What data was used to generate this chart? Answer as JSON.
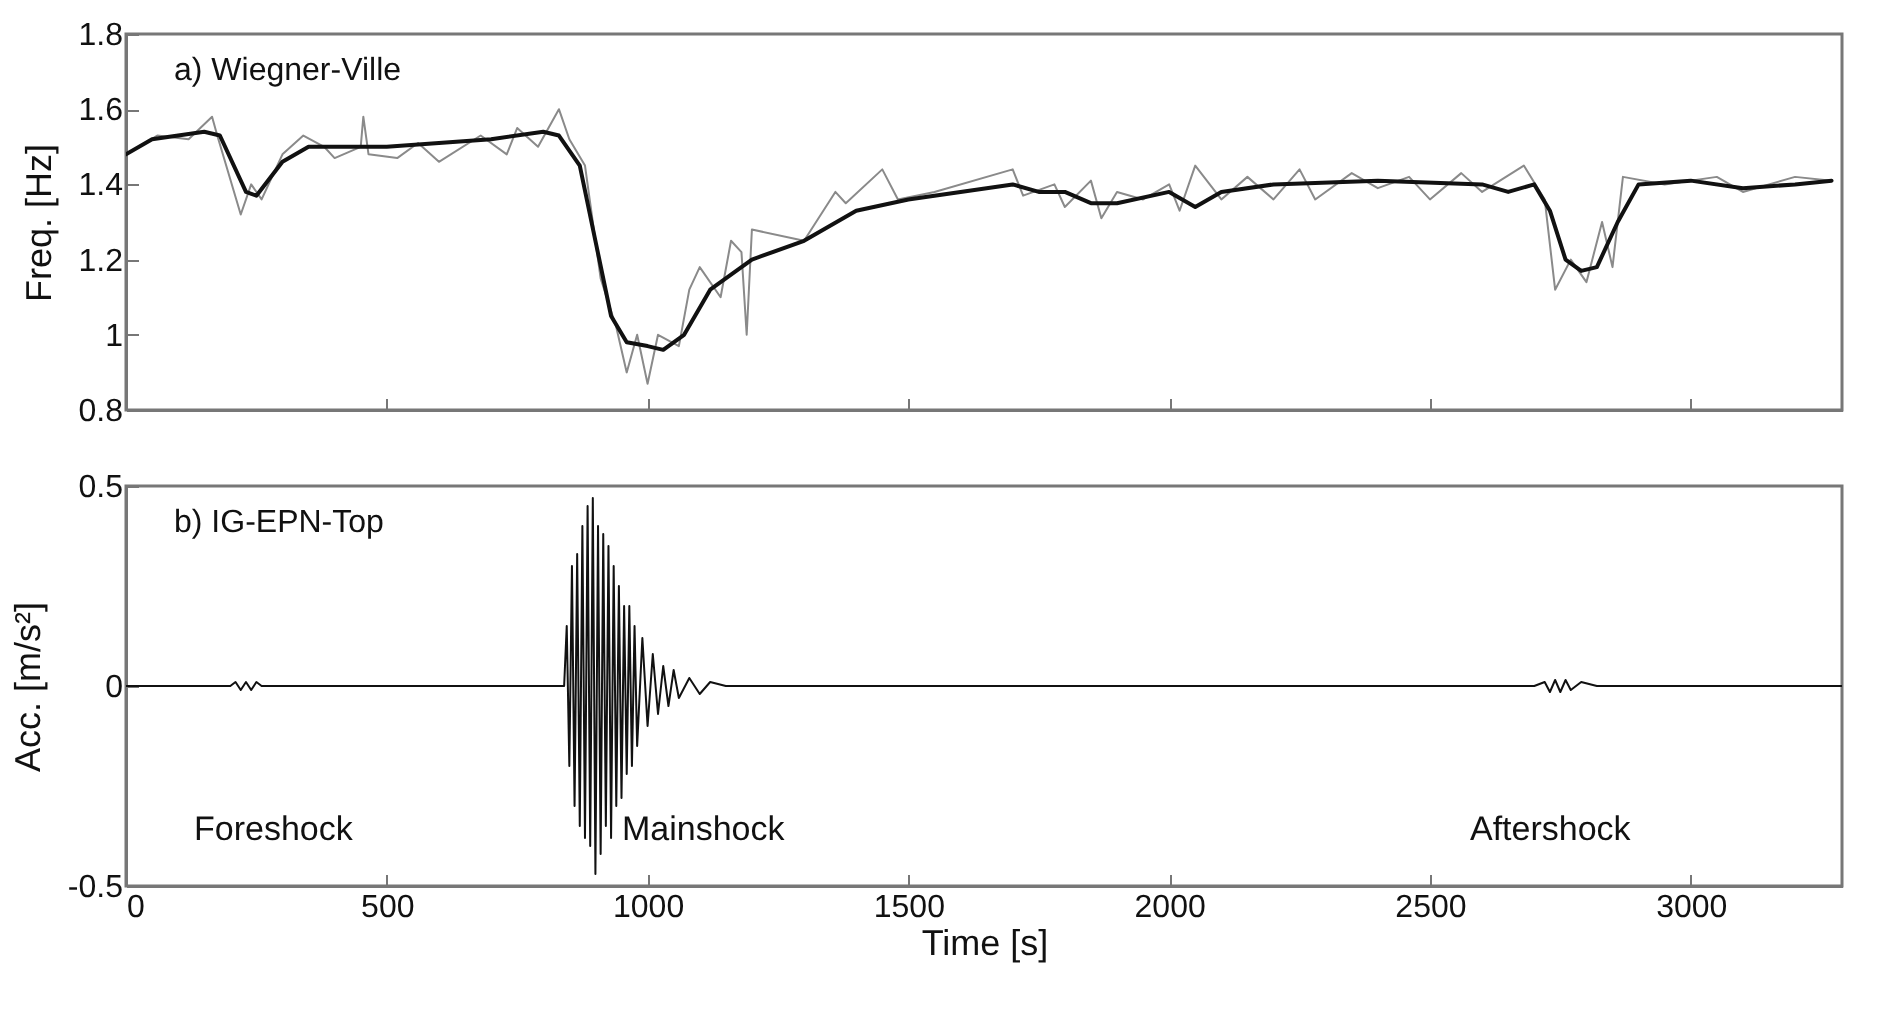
{
  "chart_data": [
    {
      "type": "line",
      "ylabel": "Freq. [Hz]",
      "annotations": [
        "a) Wiegner-Ville"
      ],
      "xlim": [
        0,
        3290
      ],
      "xticks": [
        0,
        500,
        1000,
        1500,
        2000,
        2500,
        3000
      ],
      "ylim": [
        0.8,
        1.8
      ],
      "yticks": [
        0.8,
        1,
        1.2,
        1.4,
        1.6,
        1.8
      ],
      "tick_labels": "y",
      "series": [
        {
          "color": "#8a8a8a",
          "x": [
            0,
            60,
            120,
            165,
            175,
            220,
            240,
            260,
            300,
            340,
            380,
            400,
            450,
            455,
            465,
            520,
            560,
            600,
            680,
            730,
            750,
            790,
            830,
            850,
            880,
            910,
            940,
            960,
            980,
            1000,
            1020,
            1060,
            1080,
            1100,
            1140,
            1160,
            1180,
            1190,
            1200,
            1300,
            1360,
            1380,
            1450,
            1480,
            1550,
            1700,
            1720,
            1780,
            1800,
            1850,
            1870,
            1900,
            1950,
            2000,
            2020,
            2050,
            2100,
            2150,
            2200,
            2250,
            2280,
            2350,
            2400,
            2460,
            2500,
            2560,
            2600,
            2680,
            2720,
            2740,
            2770,
            2800,
            2830,
            2850,
            2870,
            2950,
            3050,
            3100,
            3200,
            3270
          ],
          "values": [
            1.48,
            1.53,
            1.52,
            1.58,
            1.53,
            1.32,
            1.4,
            1.36,
            1.48,
            1.53,
            1.5,
            1.47,
            1.5,
            1.58,
            1.48,
            1.47,
            1.51,
            1.46,
            1.53,
            1.48,
            1.55,
            1.5,
            1.6,
            1.52,
            1.45,
            1.15,
            1.02,
            0.9,
            1.0,
            0.87,
            1.0,
            0.97,
            1.12,
            1.18,
            1.1,
            1.25,
            1.22,
            1.0,
            1.28,
            1.25,
            1.38,
            1.35,
            1.44,
            1.36,
            1.38,
            1.44,
            1.37,
            1.4,
            1.34,
            1.41,
            1.31,
            1.38,
            1.36,
            1.4,
            1.33,
            1.45,
            1.36,
            1.42,
            1.36,
            1.44,
            1.36,
            1.43,
            1.39,
            1.42,
            1.36,
            1.43,
            1.38,
            1.45,
            1.36,
            1.12,
            1.2,
            1.14,
            1.3,
            1.18,
            1.42,
            1.4,
            1.42,
            1.38,
            1.42,
            1.41
          ]
        },
        {
          "color": "#111111",
          "x": [
            0,
            50,
            150,
            180,
            230,
            250,
            300,
            350,
            500,
            700,
            800,
            830,
            870,
            900,
            930,
            960,
            1000,
            1030,
            1070,
            1120,
            1200,
            1300,
            1400,
            1500,
            1600,
            1700,
            1750,
            1800,
            1850,
            1900,
            2000,
            2050,
            2100,
            2200,
            2400,
            2600,
            2650,
            2700,
            2730,
            2760,
            2790,
            2820,
            2860,
            2900,
            3000,
            3100,
            3200,
            3270
          ],
          "values": [
            1.48,
            1.52,
            1.54,
            1.53,
            1.38,
            1.37,
            1.46,
            1.5,
            1.5,
            1.52,
            1.54,
            1.53,
            1.45,
            1.25,
            1.05,
            0.98,
            0.97,
            0.96,
            1.0,
            1.12,
            1.2,
            1.25,
            1.33,
            1.36,
            1.38,
            1.4,
            1.38,
            1.38,
            1.35,
            1.35,
            1.38,
            1.34,
            1.38,
            1.4,
            1.41,
            1.4,
            1.38,
            1.4,
            1.33,
            1.2,
            1.17,
            1.18,
            1.3,
            1.4,
            1.41,
            1.39,
            1.4,
            1.41
          ]
        }
      ]
    },
    {
      "type": "line",
      "xlabel": "Time [s]",
      "ylabel": "Acc. [m/s²]",
      "annotations": [
        "b) IG-EPN-Top",
        "Foreshock",
        "Mainshock",
        "Aftershock"
      ],
      "xlim": [
        0,
        3290
      ],
      "xticks": [
        0,
        500,
        1000,
        1500,
        2000,
        2500,
        3000
      ],
      "ylim": [
        -0.5,
        0.5
      ],
      "yticks": [
        -0.5,
        0,
        0.5
      ],
      "series": [
        {
          "color": "#111111",
          "x": [
            0,
            100,
            200,
            210,
            220,
            230,
            240,
            250,
            260,
            400,
            600,
            800,
            840,
            845,
            850,
            855,
            860,
            865,
            870,
            875,
            880,
            885,
            890,
            895,
            900,
            905,
            910,
            915,
            920,
            925,
            930,
            935,
            940,
            945,
            950,
            955,
            960,
            965,
            970,
            975,
            980,
            990,
            1000,
            1010,
            1020,
            1030,
            1040,
            1050,
            1060,
            1080,
            1100,
            1120,
            1150,
            1500,
            2000,
            2500,
            2700,
            2720,
            2730,
            2740,
            2750,
            2760,
            2770,
            2790,
            2820,
            3000,
            3290
          ],
          "values": [
            0,
            0,
            0,
            0.01,
            -0.01,
            0.01,
            -0.01,
            0.01,
            0,
            0,
            0,
            0,
            0,
            0.15,
            -0.2,
            0.3,
            -0.3,
            0.33,
            -0.35,
            0.4,
            -0.38,
            0.45,
            -0.4,
            0.47,
            -0.47,
            0.4,
            -0.42,
            0.38,
            -0.35,
            0.35,
            -0.38,
            0.3,
            -0.3,
            0.25,
            -0.28,
            0.2,
            -0.22,
            0.2,
            -0.2,
            0.15,
            -0.15,
            0.12,
            -0.1,
            0.08,
            -0.07,
            0.05,
            -0.05,
            0.04,
            -0.03,
            0.02,
            -0.02,
            0.01,
            0,
            0,
            0,
            0,
            0,
            0.01,
            -0.015,
            0.015,
            -0.015,
            0.015,
            -0.01,
            0.01,
            0,
            0,
            0
          ]
        }
      ]
    }
  ]
}
